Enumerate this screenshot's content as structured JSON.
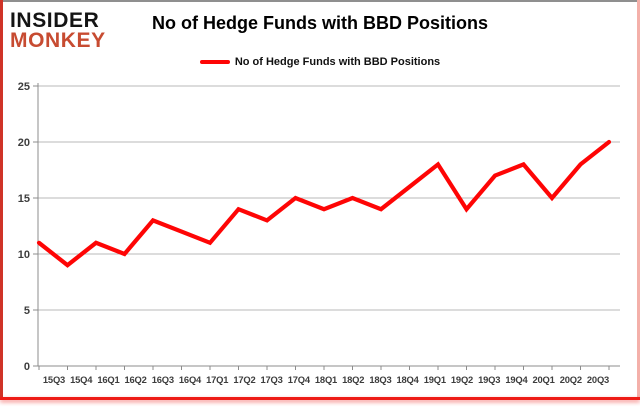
{
  "logo": {
    "line1": "INSIDER",
    "line2": "MONKEY"
  },
  "header": {
    "title": "No of Hedge Funds with BBD Positions"
  },
  "legend": {
    "label": "No of Hedge Funds with BBD Positions"
  },
  "colors": {
    "line": "#fe0505",
    "logo_black": "#141414",
    "logo_red": "#c74b31",
    "grid": "#b9b9b9",
    "axis": "#8c8c8c",
    "tick_label": "#3d3d3d",
    "border_bottom": "#ee1c16",
    "border_left": "#cf3327",
    "border_right": "#f4b0aa",
    "border_top": "#8f8f8f"
  },
  "chart_data": {
    "type": "line",
    "title": "No of Hedge Funds with BBD Positions",
    "categories": [
      "15Q3",
      "15Q4",
      "16Q1",
      "16Q2",
      "16Q3",
      "16Q4",
      "17Q1",
      "17Q2",
      "17Q3",
      "17Q4",
      "18Q1",
      "18Q2",
      "18Q3",
      "18Q4",
      "19Q1",
      "19Q2",
      "19Q3",
      "19Q4",
      "20Q1",
      "20Q2",
      "20Q3"
    ],
    "series": [
      {
        "name": "No of Hedge Funds with BBD Positions",
        "values": [
          11,
          9,
          11,
          10,
          13,
          12,
          11,
          14,
          13,
          15,
          14,
          15,
          14,
          16,
          18,
          14,
          17,
          18,
          15,
          18,
          20
        ]
      }
    ],
    "xlabel": "",
    "ylabel": "",
    "ylim": [
      0,
      25
    ],
    "yticks": [
      0,
      5,
      10,
      15,
      20,
      25
    ],
    "grid": "horizontal",
    "legend_position": "top-center",
    "line_color": "#fe0505"
  }
}
